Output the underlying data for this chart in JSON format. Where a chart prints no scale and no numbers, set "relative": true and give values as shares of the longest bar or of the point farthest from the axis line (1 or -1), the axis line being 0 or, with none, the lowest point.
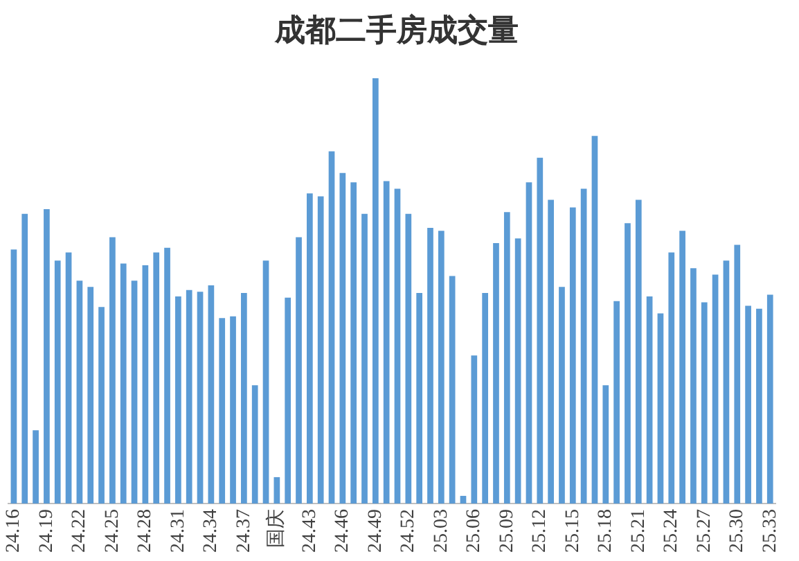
{
  "chart_data": {
    "type": "bar",
    "title": "成都二手房成交量",
    "relative": true,
    "color": "#5b9bd5",
    "categories": [
      "24.16",
      null,
      null,
      "24.19",
      null,
      null,
      "24.22",
      null,
      null,
      "24.25",
      null,
      null,
      "24.28",
      null,
      null,
      "24.31",
      null,
      null,
      "24.34",
      null,
      null,
      "24.37",
      null,
      null,
      "国庆",
      null,
      null,
      "24.43",
      null,
      null,
      "24.46",
      null,
      null,
      "24.49",
      null,
      null,
      "24.52",
      null,
      null,
      "25.03",
      null,
      null,
      "25.06",
      null,
      null,
      "25.09",
      null,
      null,
      "25.12",
      null,
      null,
      "25.15",
      null,
      null,
      "25.18",
      null,
      null,
      "25.21",
      null,
      null,
      "25.24",
      null,
      null,
      "25.27",
      null,
      null,
      "25.30",
      null,
      null,
      "25.33"
    ],
    "values": [
      0.597,
      0.681,
      0.172,
      0.692,
      0.571,
      0.59,
      0.524,
      0.509,
      0.462,
      0.626,
      0.564,
      0.524,
      0.56,
      0.59,
      0.601,
      0.487,
      0.502,
      0.498,
      0.513,
      0.436,
      0.44,
      0.495,
      0.278,
      0.571,
      0.062,
      0.484,
      0.626,
      0.729,
      0.722,
      0.828,
      0.777,
      0.755,
      0.681,
      1.0,
      0.758,
      0.74,
      0.681,
      0.495,
      0.648,
      0.641,
      0.535,
      0.018,
      0.348,
      0.495,
      0.612,
      0.685,
      0.623,
      0.755,
      0.813,
      0.714,
      0.509,
      0.696,
      0.74,
      0.864,
      0.278,
      0.476,
      0.659,
      0.714,
      0.487,
      0.447,
      0.59,
      0.641,
      0.553,
      0.473,
      0.538,
      0.571,
      0.608,
      0.465,
      0.458,
      0.491
    ]
  }
}
